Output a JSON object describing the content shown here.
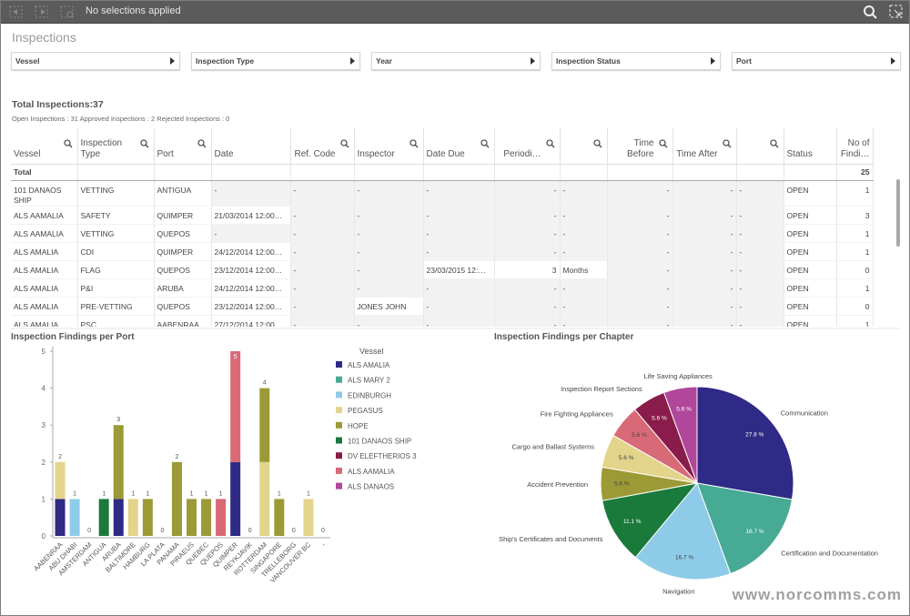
{
  "toolbar": {
    "selection_status": "No selections applied"
  },
  "sheet": {
    "title": "Inspections"
  },
  "filters": [
    "Vessel",
    "Inspection Type",
    "Year",
    "Inspection Status",
    "Port"
  ],
  "summary": {
    "title": "Total Inspections:37",
    "subtitle": "Open Inspections : 31 Approved Inspections : 2 Rejected Inspections : 0"
  },
  "table": {
    "headers": [
      "Vessel",
      "Inspection Type",
      "Port",
      "Date",
      "Ref. Code",
      "Inspector",
      "Date Due",
      "Periodi…",
      null,
      "Time Before",
      "Time After",
      null,
      "Status",
      "No of Findi…"
    ],
    "total_row": [
      "Total",
      null,
      null,
      null,
      null,
      null,
      null,
      null,
      null,
      null,
      null,
      null,
      null,
      "25"
    ],
    "rows": [
      [
        "101 DANAOS SHIP",
        "VETTING",
        "ANTIGUA",
        "-",
        "-",
        "-",
        "-",
        "-",
        "-",
        "-",
        "-",
        "-",
        "OPEN",
        "1"
      ],
      [
        "ALS AAMALIA",
        "SAFETY",
        "QUIMPER",
        "21/03/2014 12:00…",
        "-",
        "-",
        "-",
        "-",
        "-",
        "-",
        "-",
        "-",
        "OPEN",
        "3"
      ],
      [
        "ALS AAMALIA",
        "VETTING",
        "QUEPOS",
        "-",
        "-",
        "-",
        "-",
        "-",
        "-",
        "-",
        "-",
        "-",
        "OPEN",
        "1"
      ],
      [
        "ALS AMALIA",
        "CDI",
        "QUIMPER",
        "24/12/2014 12:00…",
        "-",
        "-",
        "-",
        "-",
        "-",
        "-",
        "-",
        "-",
        "OPEN",
        "1"
      ],
      [
        "ALS AMALIA",
        "FLAG",
        "QUEPOS",
        "23/12/2014 12:00…",
        "-",
        "-",
        "23/03/2015 12:…",
        "3",
        "Months",
        "-",
        "-",
        "-",
        "OPEN",
        "0"
      ],
      [
        "ALS AMALIA",
        "P&I",
        "ARUBA",
        "24/12/2014 12:00…",
        "-",
        "-",
        "-",
        "-",
        "-",
        "-",
        "-",
        "-",
        "OPEN",
        "1"
      ],
      [
        "ALS AMALIA",
        "PRE-VETTING",
        "QUEPOS",
        "23/12/2014 12:00…",
        "-",
        "JONES JOHN",
        "-",
        "-",
        "-",
        "-",
        "-",
        "-",
        "OPEN",
        "0"
      ],
      [
        "ALS AMALIA",
        "PSC",
        "AABENRAA",
        "27/12/2014 12:00…",
        "-",
        "-",
        "-",
        "-",
        "-",
        "-",
        "-",
        "-",
        "OPEN",
        "1"
      ]
    ]
  },
  "chart_data": [
    {
      "type": "bar",
      "stacked": true,
      "title": "Inspection Findings per Port",
      "legend_title": "Vessel",
      "legend": "right",
      "grid": false,
      "categories": [
        "AABENRAA",
        "ABU DHABI",
        "AMSTERDAM",
        "ANTIGUA",
        "ARUBA",
        "BALTIMORE",
        "HAMBURG",
        "LA PLATA",
        "PANAMA",
        "PIRAEUS",
        "QUEBEC",
        "QUEPOS",
        "QUIMPER",
        "REYKJAVIK",
        "ROTTERDAM",
        "SINGAPORE",
        "TRELLEBORG",
        "VANCOUVER BC",
        "-"
      ],
      "ylim": [
        0,
        5
      ],
      "yticks": [
        0,
        1,
        2,
        3,
        4,
        5
      ],
      "totals": [
        2,
        1,
        0,
        1,
        3,
        1,
        1,
        0,
        2,
        1,
        1,
        1,
        5,
        0,
        4,
        1,
        0,
        1,
        0
      ],
      "series": [
        {
          "name": "ALS AMALIA",
          "color": "#2f2a85",
          "values": [
            1,
            0,
            0,
            0,
            1,
            0,
            0,
            0,
            0,
            0,
            0,
            0,
            2,
            0,
            0,
            0,
            0,
            0,
            0
          ]
        },
        {
          "name": "ALS MARY 2",
          "color": "#46aa95",
          "values": [
            0,
            0,
            0,
            0,
            0,
            0,
            0,
            0,
            0,
            0,
            0,
            0,
            0,
            0,
            0,
            0,
            0,
            0,
            0
          ]
        },
        {
          "name": "EDINBURGH",
          "color": "#8ecbe9",
          "values": [
            0,
            1,
            0,
            0,
            0,
            0,
            0,
            0,
            0,
            0,
            0,
            0,
            0,
            0,
            0,
            0,
            0,
            0,
            0
          ]
        },
        {
          "name": "PEGASUS",
          "color": "#e3d48b",
          "values": [
            1,
            0,
            0,
            0,
            0,
            1,
            0,
            0,
            0,
            0,
            0,
            0,
            0,
            0,
            2,
            0,
            0,
            1,
            0
          ]
        },
        {
          "name": "HOPE",
          "color": "#9b9a37",
          "values": [
            0,
            0,
            0,
            0,
            2,
            0,
            1,
            0,
            2,
            1,
            1,
            0,
            0,
            0,
            2,
            1,
            0,
            0,
            0
          ]
        },
        {
          "name": "101 DANAOS SHIP",
          "color": "#1a7a3b",
          "values": [
            0,
            0,
            0,
            1,
            0,
            0,
            0,
            0,
            0,
            0,
            0,
            0,
            0,
            0,
            0,
            0,
            0,
            0,
            0
          ]
        },
        {
          "name": "DV ELEFTHERIOS 3",
          "color": "#8a1c4b",
          "values": [
            0,
            0,
            0,
            0,
            0,
            0,
            0,
            0,
            0,
            0,
            0,
            0,
            0,
            0,
            0,
            0,
            0,
            0,
            0
          ]
        },
        {
          "name": "ALS AAMALIA",
          "color": "#d86a78",
          "values": [
            0,
            0,
            0,
            0,
            0,
            0,
            0,
            0,
            0,
            0,
            0,
            1,
            3,
            0,
            0,
            0,
            0,
            0,
            0
          ]
        },
        {
          "name": "ALS DANAOS",
          "color": "#b0479b",
          "values": [
            0,
            0,
            0,
            0,
            0,
            0,
            0,
            0,
            0,
            0,
            0,
            0,
            0,
            0,
            0,
            0,
            0,
            0,
            0
          ]
        }
      ]
    },
    {
      "type": "pie",
      "title": "Inspection Findings per Chapter",
      "categories": [
        "Communication",
        "Certification and Documentation",
        "Navigation",
        "Ship's Certificates and Documents",
        "Accident Prevention",
        "Cargo and Ballast Systems",
        "Fire Fighting Appliances",
        "Inspection Report Sections",
        "Life Saving Appliances"
      ],
      "values": [
        27.8,
        16.7,
        16.7,
        11.1,
        5.6,
        5.6,
        5.6,
        5.6,
        5.6
      ],
      "value_labels": [
        "27.8 %",
        "16.7 %",
        "16.7 %",
        "11.1 %",
        "5.6 %",
        "5.6 %",
        "5.6 %",
        "5.6 %",
        "5.6 %"
      ],
      "colors": [
        "#2f2a85",
        "#46aa95",
        "#8ecbe9",
        "#1a7a3b",
        "#9b9a37",
        "#e3d48b",
        "#d86a78",
        "#8a1c4b",
        "#b0479b"
      ]
    }
  ],
  "watermark": "www.norcomms.com"
}
